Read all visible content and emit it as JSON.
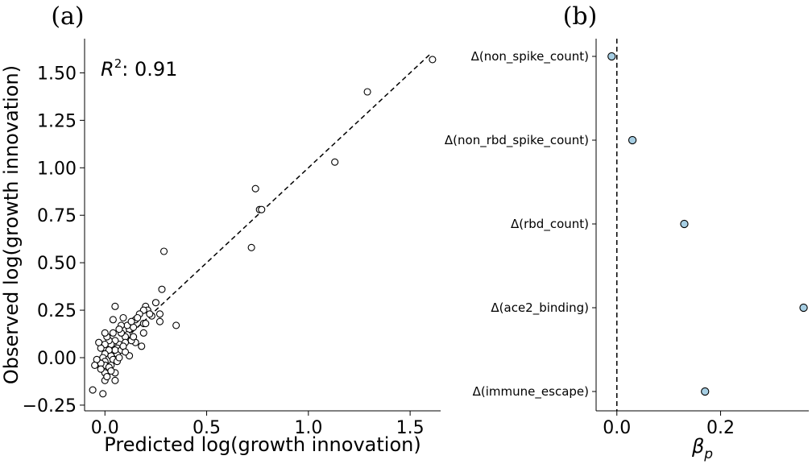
{
  "chart_data": [
    {
      "type": "scatter",
      "panel_label": "(a)",
      "xlabel": "Predicted log(growth innovation)",
      "ylabel": "Observed log(growth innovation)",
      "annotation": {
        "symbol": "R",
        "superscript": "2",
        "text": ": 0.91"
      },
      "xlim": [
        -0.1,
        1.65
      ],
      "ylim": [
        -0.28,
        1.68
      ],
      "xticks": [
        0.0,
        0.5,
        1.0,
        1.5
      ],
      "xtick_labels": [
        "0.0",
        "0.5",
        "1.0",
        "1.5"
      ],
      "yticks": [
        -0.25,
        0.0,
        0.25,
        0.5,
        0.75,
        1.0,
        1.25,
        1.5
      ],
      "ytick_labels": [
        "−0.25",
        "0.00",
        "0.25",
        "0.50",
        "0.75",
        "1.00",
        "1.25",
        "1.50"
      ],
      "fit_line": {
        "x": [
          0.13,
          1.6
        ],
        "y": [
          0.13,
          1.6
        ],
        "style": "dashed"
      },
      "marker": {
        "fill": "#ffffff",
        "edge": "#000000"
      },
      "points": [
        [
          1.61,
          1.57
        ],
        [
          1.29,
          1.4
        ],
        [
          1.13,
          1.03
        ],
        [
          0.74,
          0.89
        ],
        [
          0.76,
          0.78
        ],
        [
          0.77,
          0.78
        ],
        [
          0.72,
          0.58
        ],
        [
          0.29,
          0.56
        ],
        [
          0.28,
          0.36
        ],
        [
          0.25,
          0.29
        ],
        [
          0.35,
          0.17
        ],
        [
          0.27,
          0.23
        ],
        [
          0.27,
          0.19
        ],
        [
          0.23,
          0.22
        ],
        [
          0.2,
          0.27
        ],
        [
          0.21,
          0.25
        ],
        [
          0.19,
          0.25
        ],
        [
          0.17,
          0.23
        ],
        [
          0.19,
          0.18
        ],
        [
          0.2,
          0.18
        ],
        [
          0.15,
          0.2
        ],
        [
          0.19,
          0.13
        ],
        [
          0.05,
          0.27
        ],
        [
          0.18,
          0.06
        ],
        [
          0.15,
          0.08
        ],
        [
          0.13,
          0.09
        ],
        [
          0.12,
          0.15
        ],
        [
          0.11,
          0.17
        ],
        [
          0.09,
          0.21
        ],
        [
          0.11,
          0.12
        ],
        [
          0.1,
          0.11
        ],
        [
          0.1,
          0.08
        ],
        [
          0.12,
          0.01
        ],
        [
          0.08,
          0.17
        ],
        [
          0.08,
          0.13
        ],
        [
          0.07,
          0.15
        ],
        [
          0.07,
          0.07
        ],
        [
          0.06,
          0.05
        ],
        [
          0.06,
          0.02
        ],
        [
          0.05,
          0.09
        ],
        [
          0.04,
          0.13
        ],
        [
          0.05,
          0.04
        ],
        [
          0.04,
          0.2
        ],
        [
          0.03,
          0.07
        ],
        [
          0.03,
          0.01
        ],
        [
          0.04,
          -0.01
        ],
        [
          0.03,
          -0.04
        ],
        [
          0.05,
          -0.08
        ],
        [
          0.05,
          -0.12
        ],
        [
          0.02,
          0.09
        ],
        [
          0.02,
          0.04
        ],
        [
          0.01,
          0.11
        ],
        [
          0.0,
          0.13
        ],
        [
          0.0,
          0.07
        ],
        [
          0.0,
          0.02
        ],
        [
          -0.01,
          0.0
        ],
        [
          0.0,
          -0.02
        ],
        [
          0.0,
          -0.04
        ],
        [
          0.0,
          -0.08
        ],
        [
          0.0,
          -0.12
        ],
        [
          -0.02,
          0.05
        ],
        [
          -0.02,
          -0.03
        ],
        [
          -0.02,
          -0.06
        ],
        [
          -0.03,
          0.08
        ],
        [
          -0.04,
          -0.01
        ],
        [
          -0.05,
          -0.04
        ],
        [
          -0.06,
          -0.17
        ],
        [
          -0.01,
          -0.19
        ],
        [
          0.01,
          -0.1
        ],
        [
          0.02,
          -0.05
        ],
        [
          0.03,
          -0.07
        ],
        [
          0.06,
          -0.02
        ],
        [
          0.08,
          0.04
        ],
        [
          0.09,
          0.06
        ],
        [
          0.14,
          0.16
        ],
        [
          0.16,
          0.21
        ],
        [
          0.13,
          0.19
        ],
        [
          0.14,
          0.11
        ],
        [
          0.22,
          0.23
        ],
        [
          0.1,
          0.03
        ],
        [
          0.07,
          0.0
        ]
      ]
    },
    {
      "type": "scatter",
      "panel_label": "(b)",
      "xlabel": {
        "symbol": "β",
        "subscript": "p"
      },
      "categories": [
        "Δ(non_spike_count)",
        "Δ(non_rbd_spike_count)",
        "Δ(rbd_count)",
        "Δ(ace2_binding)",
        "Δ(immune_escape)"
      ],
      "values": [
        -0.01,
        0.03,
        0.13,
        0.36,
        0.17
      ],
      "xlim": [
        -0.04,
        0.37
      ],
      "xticks": [
        0.0,
        0.2
      ],
      "xtick_labels": [
        "0.0",
        "0.2"
      ],
      "reference_line": {
        "x": 0.0,
        "style": "dashed"
      },
      "marker": {
        "fill": "#a6cee3",
        "edge": "#000000"
      }
    }
  ]
}
